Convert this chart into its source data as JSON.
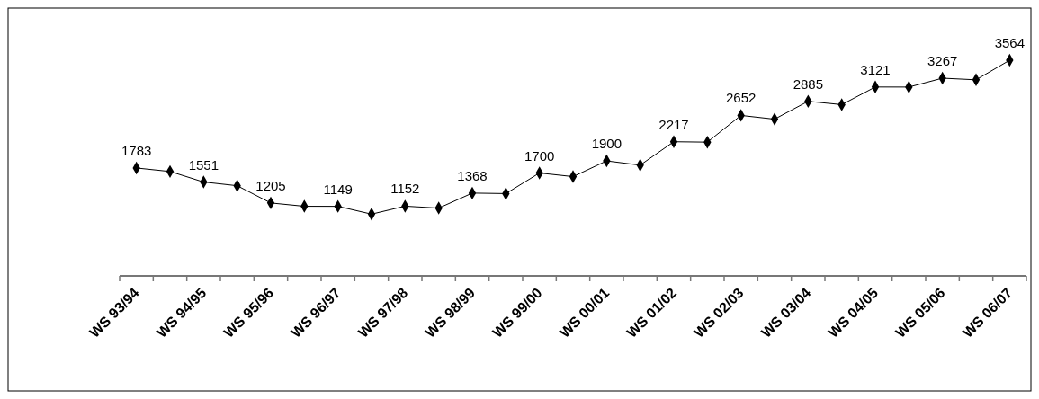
{
  "chart_data": {
    "type": "line",
    "categories": [
      "WS 93/94",
      null,
      "WS 94/95",
      null,
      "WS 95/96",
      null,
      "WS 96/97",
      null,
      "WS 97/98",
      null,
      "WS 98/99",
      null,
      "WS 99/00",
      null,
      "WS 00/01",
      null,
      "WS 01/02",
      null,
      "WS 02/03",
      null,
      "WS 03/04",
      null,
      "WS 04/05",
      null,
      "WS 05/06",
      null,
      "WS 06/07"
    ],
    "series": [
      {
        "color": "#000000",
        "values": [
          1783,
          1725,
          1551,
          1490,
          1205,
          1150,
          1149,
          1020,
          1152,
          1120,
          1368,
          1360,
          1700,
          1640,
          1900,
          1830,
          2217,
          2210,
          2652,
          2590,
          2885,
          2830,
          3121,
          3120,
          3267,
          3240,
          3564
        ],
        "value_labels": [
          "1783",
          null,
          "1551",
          null,
          "1205",
          null,
          "1149",
          null,
          "1152",
          null,
          "1368",
          null,
          "1700",
          null,
          "1900",
          null,
          "2217",
          null,
          "2652",
          null,
          "2885",
          null,
          "3121",
          null,
          "3267",
          null,
          "3564"
        ]
      }
    ],
    "marker": "diamond",
    "line_style": "solid"
  }
}
